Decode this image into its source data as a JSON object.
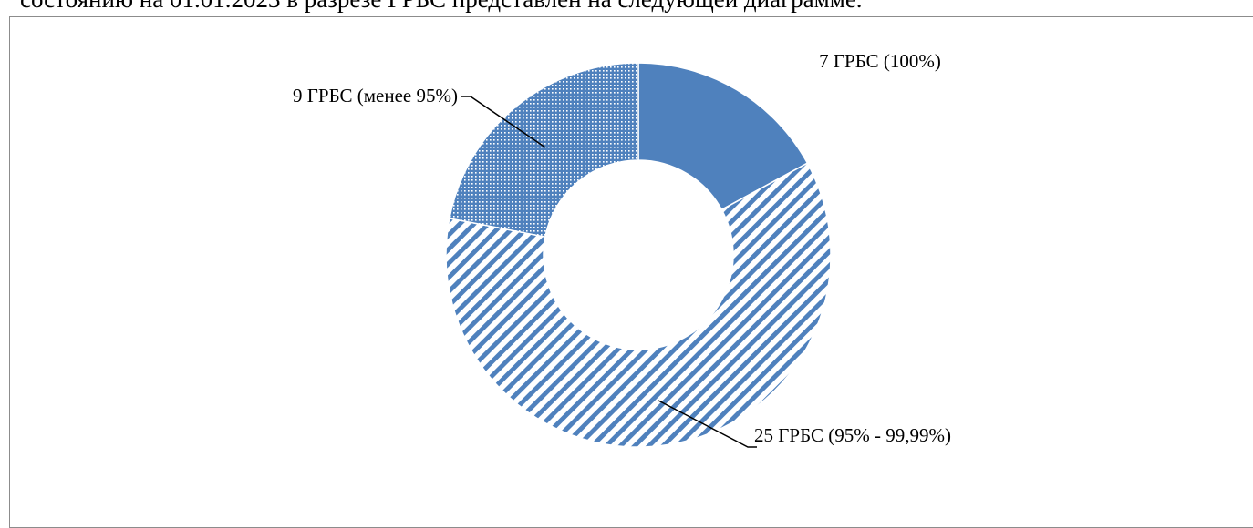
{
  "intro_text": "состоянию на 01.01.2023 в разрезе ГРБС представлен на следующей диаграмме.",
  "chart_data": {
    "type": "donut",
    "categories": [
      "7 ГРБС (100%)",
      "25 ГРБС (95% - 99,99%)",
      "9 ГРБС (менее 95%)"
    ],
    "values": [
      7,
      25,
      9
    ],
    "colors": [
      "#4f81bd",
      "#4f81bd",
      "#4f81bd"
    ],
    "patterns": [
      "solid",
      "stripes",
      "dots"
    ]
  }
}
